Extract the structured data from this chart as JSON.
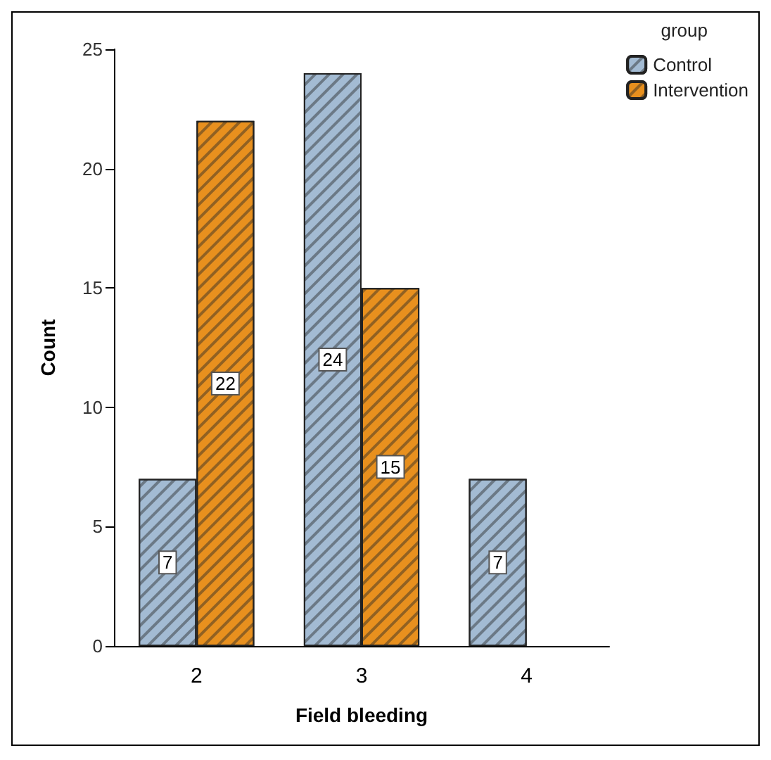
{
  "chart_data": {
    "type": "bar",
    "xlabel": "Field bleeding",
    "ylabel": "Count",
    "legend_title": "group",
    "categories": [
      "2",
      "3",
      "4"
    ],
    "series": [
      {
        "name": "Control",
        "color": "#a3bbd3",
        "values": [
          7,
          24,
          7
        ]
      },
      {
        "name": "Intervention",
        "color": "#e8901e",
        "values": [
          22,
          15,
          null
        ]
      }
    ],
    "ylim": [
      0,
      25
    ],
    "yticks": [
      0,
      5,
      10,
      15,
      20,
      25
    ],
    "grid": false,
    "legend": "top right",
    "data_labels": true
  }
}
